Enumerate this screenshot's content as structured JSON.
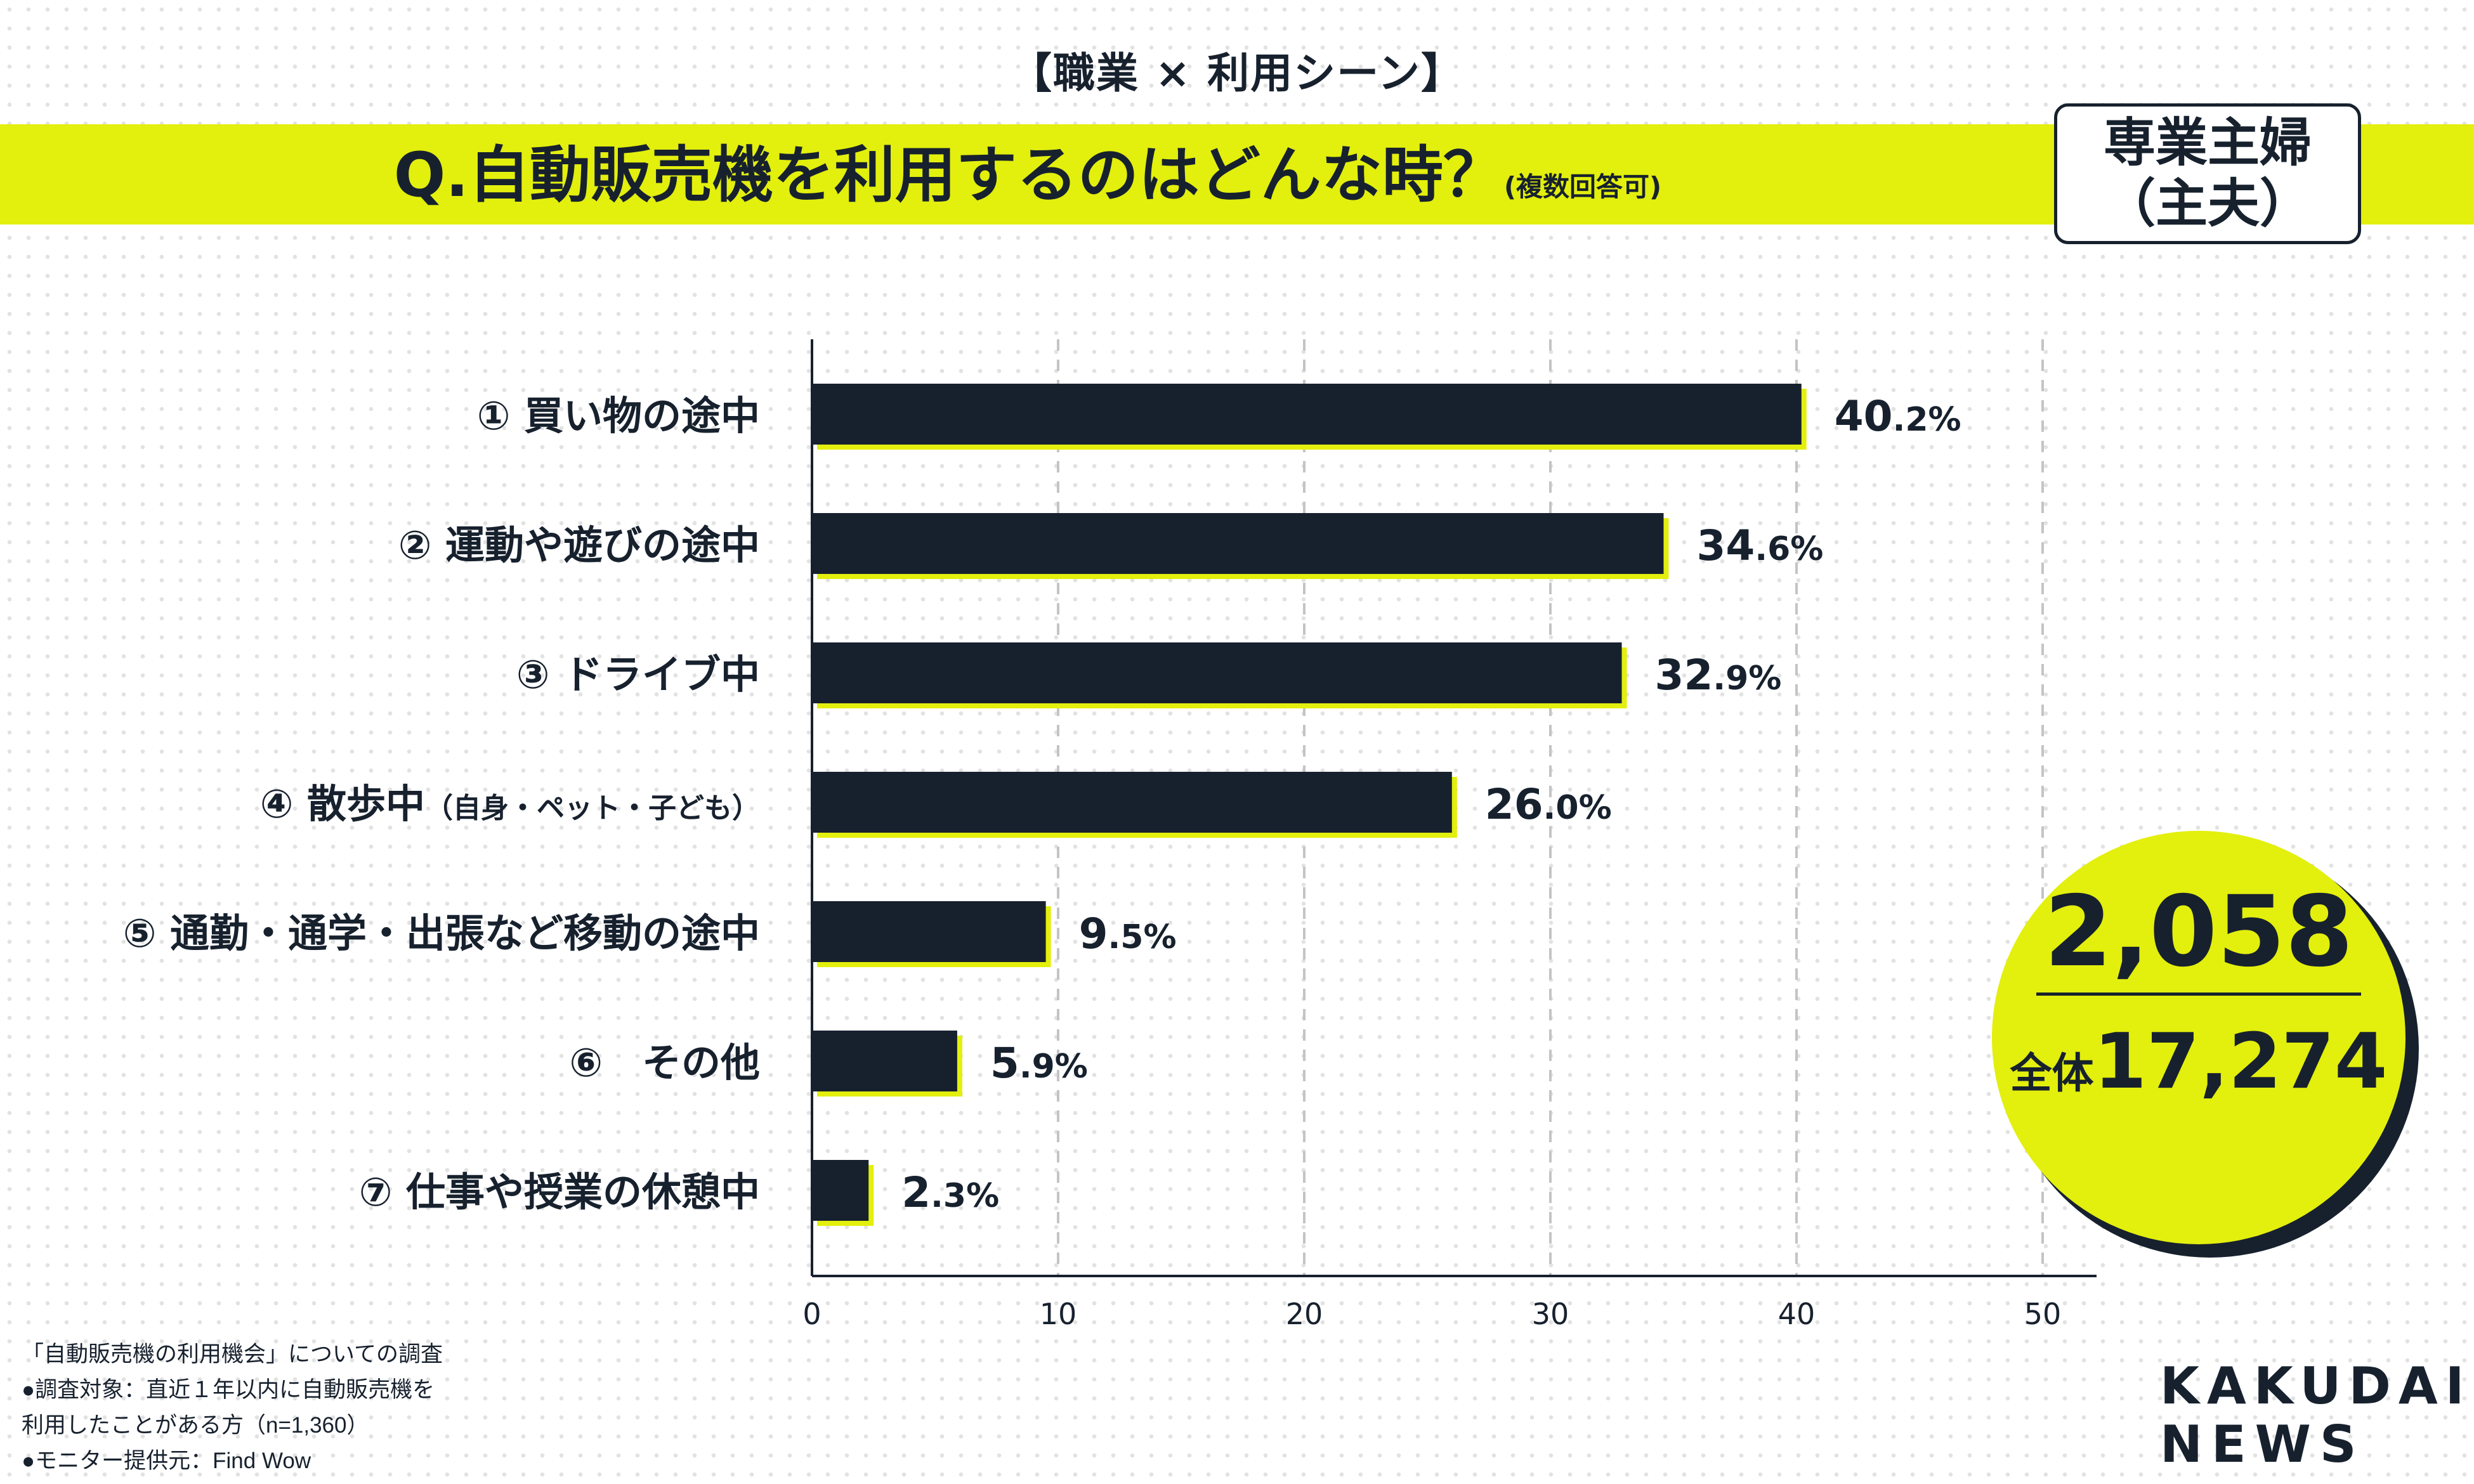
{
  "header": {
    "subtitle": "【職業 × 利用シーン】",
    "question": "Q.自動販売機を利用するのはどんな時？",
    "question_note": "(複数回答可)",
    "segment_line1": "専業主婦",
    "segment_line2": "（主夫）"
  },
  "counts": {
    "segment_count": "2,058",
    "total_label": "全体",
    "total_count": "17,274"
  },
  "footnotes": {
    "line1": "「自動販売機の利用機会」についての調査",
    "line2": "●調査対象：直近１年以内に自動販売機を",
    "line3": "利用したことがある方（n=1,360）",
    "line4": "●モニター提供元：Find Wow"
  },
  "logo": {
    "line1": "KAKUDAI",
    "line2": "NEWS"
  },
  "colors": {
    "accent": "#e3ef0d",
    "bar": "#17212e",
    "text": "#17212e"
  },
  "chart_data": {
    "type": "bar",
    "orientation": "horizontal",
    "categories": [
      "① 買い物の途中",
      "② 運動や遊びの途中",
      "③ ドライブ中",
      "④ 散歩中",
      "⑤ 通勤・通学・出張など移動の途中",
      "⑥　その他",
      "⑦ 仕事や授業の休憩中"
    ],
    "category_notes": [
      "",
      "",
      "",
      "（自身・ペット・子ども）",
      "",
      "",
      ""
    ],
    "values": [
      40.2,
      34.6,
      32.9,
      26.0,
      9.5,
      5.9,
      2.3
    ],
    "value_labels": [
      {
        "int": "40",
        "dec": ".2%"
      },
      {
        "int": "34",
        "dec": ".6%"
      },
      {
        "int": "32",
        "dec": ".9%"
      },
      {
        "int": "26",
        "dec": ".0%"
      },
      {
        "int": "9",
        "dec": ".5%"
      },
      {
        "int": "5",
        "dec": ".9%"
      },
      {
        "int": "2",
        "dec": ".3%"
      }
    ],
    "xlim": [
      0,
      50
    ],
    "xticks": [
      "0",
      "10",
      "20",
      "30",
      "40",
      "50"
    ],
    "grid": true
  }
}
